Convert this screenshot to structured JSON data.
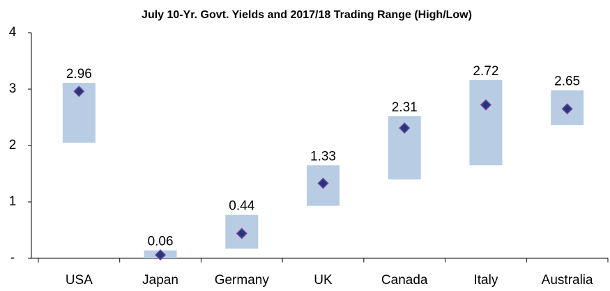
{
  "chart_data": {
    "type": "range",
    "title": "July 10-Yr. Govt. Yields and 2017/18 Trading Range (High/Low)",
    "categories": [
      "USA",
      "Japan",
      "Germany",
      "UK",
      "Canada",
      "Italy",
      "Australia"
    ],
    "values": [
      2.96,
      0.06,
      0.44,
      1.33,
      2.31,
      2.72,
      2.65
    ],
    "high": [
      3.11,
      0.14,
      0.77,
      1.65,
      2.52,
      3.16,
      2.98
    ],
    "low": [
      2.05,
      0,
      0.17,
      0.93,
      1.4,
      1.65,
      2.36
    ],
    "bar_color": "#b8cce4",
    "marker_color": "#1f3a7a",
    "marker_edge": "#7a3f9a",
    "ylim": [
      0,
      4
    ],
    "yticks": [
      {
        "value": 0,
        "label": "-"
      },
      1,
      2,
      3,
      4
    ]
  }
}
